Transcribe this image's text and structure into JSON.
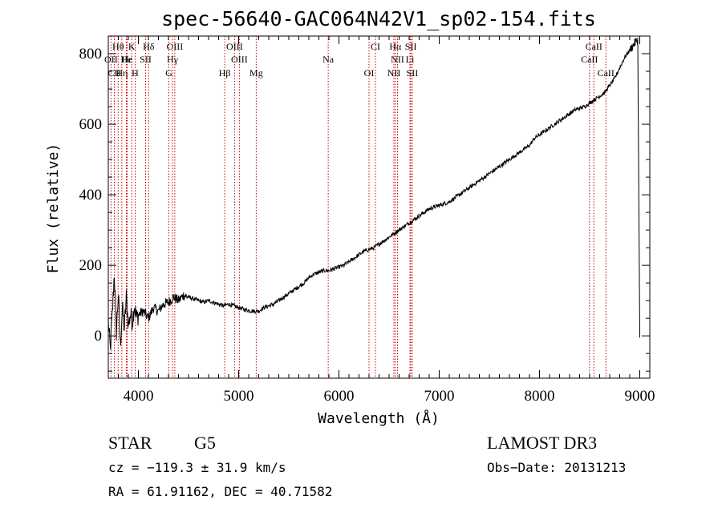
{
  "chart_data": {
    "type": "line",
    "title": "spec-56640-GAC064N42V1_sp02-154.fits",
    "xlabel": "Wavelength (Å)",
    "ylabel": "Flux (relative)",
    "xlim": [
      3700,
      9100
    ],
    "ylim": [
      -120,
      850
    ],
    "x_ticks": [
      4000,
      5000,
      6000,
      7000,
      8000,
      9000
    ],
    "y_ticks": [
      0,
      200,
      400,
      600,
      800
    ],
    "series": [
      {
        "name": "flux",
        "x": [
          3700,
          3720,
          3740,
          3760,
          3780,
          3800,
          3820,
          3840,
          3860,
          3880,
          3900,
          3920,
          3940,
          3960,
          3980,
          4000,
          4050,
          4100,
          4150,
          4200,
          4250,
          4300,
          4350,
          4400,
          4450,
          4500,
          4550,
          4600,
          4650,
          4700,
          4750,
          4800,
          4850,
          4900,
          4950,
          5000,
          5050,
          5100,
          5150,
          5200,
          5250,
          5300,
          5350,
          5400,
          5450,
          5500,
          5550,
          5600,
          5650,
          5700,
          5750,
          5800,
          5850,
          5900,
          5950,
          6000,
          6050,
          6100,
          6150,
          6200,
          6250,
          6300,
          6350,
          6400,
          6450,
          6500,
          6550,
          6600,
          6650,
          6700,
          6750,
          6800,
          6850,
          6900,
          6950,
          7000,
          7050,
          7100,
          7150,
          7200,
          7250,
          7300,
          7350,
          7400,
          7450,
          7500,
          7550,
          7600,
          7650,
          7700,
          7750,
          7800,
          7850,
          7900,
          7950,
          8000,
          8050,
          8100,
          8150,
          8200,
          8250,
          8300,
          8350,
          8400,
          8450,
          8500,
          8550,
          8600,
          8650,
          8700,
          8750,
          8800,
          8850,
          8900,
          8950,
          8980,
          9000
        ],
        "y": [
          40,
          -40,
          60,
          180,
          10,
          120,
          -30,
          80,
          20,
          110,
          30,
          60,
          40,
          90,
          50,
          60,
          70,
          50,
          80,
          70,
          90,
          95,
          110,
          100,
          115,
          110,
          105,
          100,
          95,
          100,
          95,
          90,
          85,
          90,
          85,
          80,
          75,
          72,
          70,
          70,
          80,
          85,
          90,
          100,
          110,
          120,
          130,
          140,
          150,
          165,
          175,
          180,
          185,
          185,
          190,
          195,
          200,
          210,
          220,
          230,
          240,
          245,
          250,
          260,
          270,
          280,
          290,
          300,
          310,
          320,
          330,
          340,
          350,
          360,
          365,
          370,
          375,
          380,
          390,
          400,
          410,
          420,
          430,
          440,
          450,
          460,
          470,
          480,
          490,
          500,
          510,
          520,
          530,
          540,
          560,
          570,
          580,
          590,
          600,
          610,
          620,
          630,
          640,
          645,
          650,
          660,
          670,
          680,
          690,
          710,
          730,
          760,
          790,
          810,
          830,
          840,
          -5
        ]
      }
    ],
    "spectral_lines": [
      {
        "name": "Hθ",
        "wl": 3798,
        "row": 1
      },
      {
        "name": "K",
        "wl": 3934,
        "row": 1
      },
      {
        "name": "Hδ",
        "wl": 4102,
        "row": 1
      },
      {
        "name": "OIII",
        "wl": 4363,
        "row": 1
      },
      {
        "name": "OIII",
        "wl": 4959,
        "row": 1
      },
      {
        "name": "CI",
        "wl": 6364,
        "row": 1
      },
      {
        "name": "Hα",
        "wl": 6563,
        "row": 1
      },
      {
        "name": "SII",
        "wl": 6717,
        "row": 1
      },
      {
        "name": "CaII",
        "wl": 8542,
        "row": 1
      },
      {
        "name": "OII",
        "wl": 3727,
        "row": 2
      },
      {
        "name": "Hε",
        "wl": 3889,
        "row": 2
      },
      {
        "name": "SII",
        "wl": 4072,
        "row": 2
      },
      {
        "name": "Hγ",
        "wl": 4340,
        "row": 2
      },
      {
        "name": "OIII",
        "wl": 5007,
        "row": 2
      },
      {
        "name": "Na",
        "wl": 5893,
        "row": 2
      },
      {
        "name": "NII",
        "wl": 6584,
        "row": 2
      },
      {
        "name": "Li",
        "wl": 6708,
        "row": 2
      },
      {
        "name": "CaII",
        "wl": 8498,
        "row": 2
      },
      {
        "name": "CII",
        "wl": 3760,
        "row": 3
      },
      {
        "name": "Hη",
        "wl": 3835,
        "row": 3
      },
      {
        "name": "H",
        "wl": 3968,
        "row": 3
      },
      {
        "name": "G",
        "wl": 4304,
        "row": 3
      },
      {
        "name": "Hβ",
        "wl": 4861,
        "row": 3
      },
      {
        "name": "Mg",
        "wl": 5175,
        "row": 3
      },
      {
        "name": "OI",
        "wl": 6300,
        "row": 3
      },
      {
        "name": "NII",
        "wl": 6548,
        "row": 3
      },
      {
        "name": "SII",
        "wl": 6731,
        "row": 3
      },
      {
        "name": "CaII",
        "wl": 8662,
        "row": 3
      },
      {
        "name": "He",
        "wl": 3880,
        "row": 2
      }
    ]
  },
  "info": {
    "class": "STAR",
    "subclass": "G5",
    "survey": "LAMOST DR3",
    "cz": "cz = −119.3 ± 31.9 km/s",
    "obs_date": "Obs−Date: 20131213",
    "coords": "RA =  61.91162, DEC =  40.71582"
  },
  "colors": {
    "line_marker": "#cc0000",
    "spectrum": "#000000",
    "axis": "#000000"
  }
}
